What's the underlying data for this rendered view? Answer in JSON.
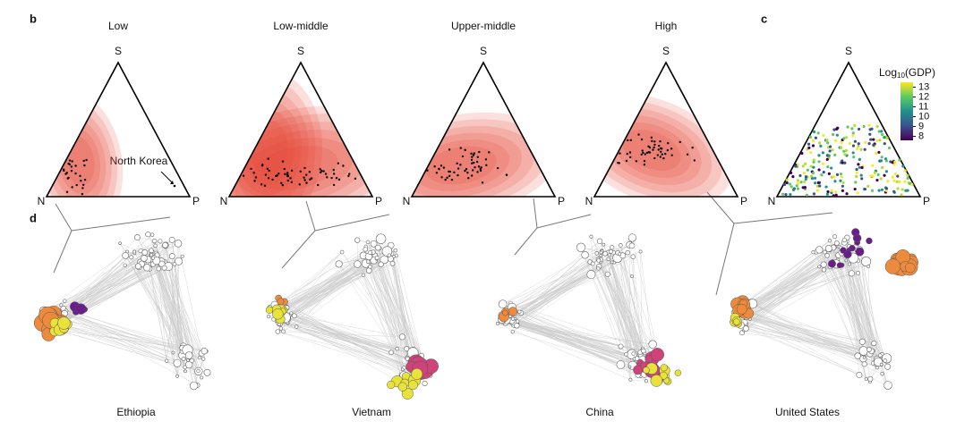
{
  "panels": {
    "b": "b",
    "c": "c",
    "d": "d"
  },
  "ternary": [
    {
      "title": "Low",
      "top": "S",
      "left": "N",
      "right": "P"
    },
    {
      "title": "Low-middle",
      "top": "S",
      "left": "N",
      "right": "P"
    },
    {
      "title": "Upper-middle",
      "top": "S",
      "left": "N",
      "right": "P"
    },
    {
      "title": "High",
      "top": "S",
      "left": "N",
      "right": "P"
    },
    {
      "top": "S",
      "left": "N",
      "right": "P"
    }
  ],
  "annotation": "North Korea",
  "colorbar": {
    "title": {
      "base": "Log",
      "sub": "10",
      "rest": "(GDP)"
    },
    "lim": [
      7.6,
      13.5
    ],
    "ticks": [
      13,
      12,
      11,
      10,
      9,
      8
    ]
  },
  "countries": [
    "Ethiopia",
    "Vietnam",
    "China",
    "United States"
  ]
}
